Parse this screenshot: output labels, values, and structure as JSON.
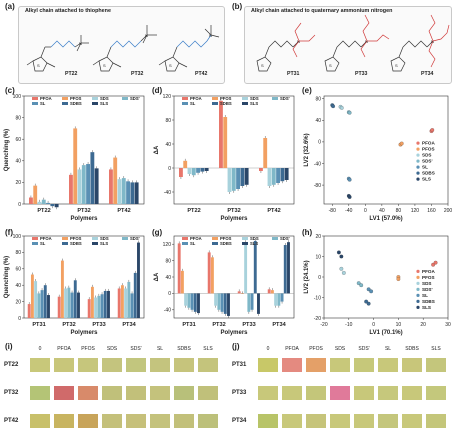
{
  "labels": {
    "a": "(a)",
    "b": "(b)",
    "c": "(c)",
    "d": "(d)",
    "e": "(e)",
    "f": "(f)",
    "g": "(g)",
    "h": "(h)",
    "i": "(i)",
    "j": "(j)"
  },
  "panel_a": {
    "header": "Alkyl chain attached to thiophene",
    "molecules": [
      "PT22",
      "PT32",
      "PT42"
    ],
    "cl": "Cl"
  },
  "panel_b": {
    "header": "Alkyl chain attached to quaternary ammonium nitrogen",
    "molecules": [
      "PT31",
      "PT33",
      "PT34"
    ],
    "cl": "Cl"
  },
  "legend": [
    "PFOA",
    "PFOS",
    "SDS",
    "SDS'",
    "SL",
    "SDBS",
    "SLS"
  ],
  "series_colors": [
    "#e8766b",
    "#f2a062",
    "#a8d2dc",
    "#7fb8c8",
    "#5a90b4",
    "#3d6a92",
    "#2a4668"
  ],
  "chart_data": [
    {
      "id": "c",
      "type": "bar",
      "xlabel": "Polymers",
      "ylabel": "Quenching (%)",
      "ylim": [
        0,
        100
      ],
      "yticks": [
        0,
        20,
        40,
        60,
        80,
        100
      ],
      "categories": [
        "PT22",
        "PT32",
        "PT42"
      ],
      "series": [
        {
          "name": "PFOA",
          "values": [
            6,
            27,
            32
          ]
        },
        {
          "name": "PFOS",
          "values": [
            17,
            70,
            43
          ]
        },
        {
          "name": "SDS",
          "values": [
            2,
            32,
            23
          ]
        },
        {
          "name": "SDS'",
          "values": [
            4,
            36,
            24
          ]
        },
        {
          "name": "SL",
          "values": [
            1,
            37,
            21
          ]
        },
        {
          "name": "SDBS",
          "values": [
            -2,
            48,
            20
          ]
        },
        {
          "name": "SLS",
          "values": [
            -3,
            33,
            20
          ]
        }
      ]
    },
    {
      "id": "d",
      "type": "bar",
      "xlabel": "Polymers",
      "ylabel": "ΔA",
      "ylim": [
        -60,
        120
      ],
      "yticks": [
        -40,
        0,
        40,
        80,
        120
      ],
      "categories": [
        "PT22",
        "PT32",
        "PT42"
      ],
      "series": [
        {
          "name": "PFOA",
          "values": [
            -15,
            112,
            -5
          ]
        },
        {
          "name": "PFOS",
          "values": [
            12,
            85,
            50
          ]
        },
        {
          "name": "SDS",
          "values": [
            -10,
            -40,
            -30
          ]
        },
        {
          "name": "SDS'",
          "values": [
            -12,
            -38,
            -28
          ]
        },
        {
          "name": "SL",
          "values": [
            -8,
            -35,
            -25
          ]
        },
        {
          "name": "SDBS",
          "values": [
            -6,
            -30,
            -22
          ]
        },
        {
          "name": "SLS",
          "values": [
            -5,
            -28,
            -20
          ]
        }
      ]
    },
    {
      "id": "e",
      "type": "scatter",
      "xlabel": "LV1 (57.0%)",
      "ylabel": "LV2 (32.6%)",
      "xlim": [
        -100,
        200
      ],
      "ylim": [
        -115,
        85
      ],
      "xticks": [
        -80,
        -40,
        0,
        40,
        80,
        120,
        160,
        200
      ],
      "yticks": [
        -80,
        -40,
        0,
        40,
        80
      ],
      "series": [
        {
          "name": "PFOA",
          "points": [
            [
              160,
              20
            ],
            [
              162,
              22
            ]
          ]
        },
        {
          "name": "PFOS",
          "points": [
            [
              85,
              -5
            ],
            [
              88,
              -3
            ]
          ]
        },
        {
          "name": "SDS",
          "points": [
            [
              -60,
              65
            ],
            [
              -57,
              63
            ]
          ]
        },
        {
          "name": "SDS'",
          "points": [
            [
              -40,
              55
            ],
            [
              -38,
              54
            ]
          ]
        },
        {
          "name": "SL",
          "points": [
            [
              -40,
              -68
            ],
            [
              -38,
              -70
            ]
          ]
        },
        {
          "name": "SDBS",
          "points": [
            [
              -80,
              68
            ],
            [
              -78,
              66
            ]
          ]
        },
        {
          "name": "SLS",
          "points": [
            [
              -40,
              -100
            ],
            [
              -38,
              -102
            ]
          ]
        }
      ]
    },
    {
      "id": "f",
      "type": "bar",
      "xlabel": "Polymers",
      "ylabel": "Quenching (%)",
      "ylim": [
        0,
        100
      ],
      "yticks": [
        0,
        20,
        40,
        60,
        80,
        100
      ],
      "categories": [
        "PT31",
        "PT32",
        "PT33",
        "PT34"
      ],
      "series": [
        {
          "name": "PFOA",
          "values": [
            17,
            26,
            23,
            36
          ]
        },
        {
          "name": "PFOS",
          "values": [
            53,
            70,
            38,
            40
          ]
        },
        {
          "name": "SDS",
          "values": [
            45,
            36,
            25,
            36
          ]
        },
        {
          "name": "SDS'",
          "values": [
            30,
            37,
            27,
            44
          ]
        },
        {
          "name": "SL",
          "values": [
            34,
            31,
            29,
            30
          ]
        },
        {
          "name": "SDBS",
          "values": [
            40,
            46,
            33,
            55
          ]
        },
        {
          "name": "SLS",
          "values": [
            28,
            31,
            33,
            92
          ]
        }
      ]
    },
    {
      "id": "g",
      "type": "bar",
      "xlabel": "Polymers",
      "ylabel": "ΔA",
      "ylim": [
        -60,
        140
      ],
      "yticks": [
        -40,
        0,
        40,
        80,
        120
      ],
      "categories": [
        "PT31",
        "PT32",
        "PT33",
        "PT34"
      ],
      "series": [
        {
          "name": "PFOA",
          "values": [
            122,
            100,
            5,
            10
          ]
        },
        {
          "name": "PFOS",
          "values": [
            55,
            88,
            0,
            8
          ]
        },
        {
          "name": "SDS",
          "values": [
            -30,
            -30,
            125,
            -30
          ]
        },
        {
          "name": "SDS'",
          "values": [
            -35,
            -40,
            -45,
            -30
          ]
        },
        {
          "name": "SL",
          "values": [
            -40,
            -45,
            -40,
            -20
          ]
        },
        {
          "name": "SDBS",
          "values": [
            -45,
            -50,
            128,
            118
          ]
        },
        {
          "name": "SLS",
          "values": [
            -48,
            -55,
            -50,
            125
          ]
        }
      ]
    },
    {
      "id": "h",
      "type": "scatter",
      "xlabel": "LV1 (70.1%)",
      "ylabel": "LV2 (24.1%)",
      "xlim": [
        -20,
        30
      ],
      "ylim": [
        -20,
        20
      ],
      "xticks": [
        -20,
        -10,
        0,
        10,
        20,
        30
      ],
      "yticks": [
        -20,
        -10,
        0,
        10,
        20
      ],
      "series": [
        {
          "name": "PFOA",
          "points": [
            [
              24,
              6
            ],
            [
              25,
              7
            ]
          ]
        },
        {
          "name": "PFOS",
          "points": [
            [
              10,
              0
            ],
            [
              10,
              -1
            ]
          ]
        },
        {
          "name": "SDS",
          "points": [
            [
              -13,
              4
            ],
            [
              -12,
              2
            ]
          ]
        },
        {
          "name": "SDS'",
          "points": [
            [
              -6,
              -3
            ],
            [
              -5,
              -4
            ]
          ]
        },
        {
          "name": "SL",
          "points": [
            [
              -2,
              -6
            ],
            [
              -1,
              -7
            ]
          ]
        },
        {
          "name": "SDBS",
          "points": [
            [
              -3,
              -12
            ],
            [
              -2,
              -13
            ]
          ]
        },
        {
          "name": "SLS",
          "points": [
            [
              -14,
              12
            ],
            [
              -13,
              10
            ]
          ]
        }
      ]
    }
  ],
  "panel_i": {
    "columns": [
      "0",
      "PFOA",
      "PFOS",
      "SDS",
      "SDS'",
      "SL",
      "SDBS",
      "SLS"
    ],
    "rows": [
      {
        "name": "PT22",
        "colors": [
          "#c8c87a",
          "#c8c67a",
          "#c6c67c",
          "#c4c47e",
          "#c2c67e",
          "#c4c47e",
          "#c6c47c",
          "#c4c47c"
        ]
      },
      {
        "name": "PT32",
        "colors": [
          "#b4c476",
          "#d06a6a",
          "#d88a6a",
          "#c0c07a",
          "#c2c07a",
          "#c4c27c",
          "#b8c07a",
          "#c0c07a"
        ]
      },
      {
        "name": "PT42",
        "colors": [
          "#c8c06a",
          "#c8b460",
          "#c8a45a",
          "#c4c07a",
          "#c6c07a",
          "#c4c27c",
          "#c2c07a",
          "#bcc07a"
        ]
      }
    ]
  },
  "panel_j": {
    "columns": [
      "0",
      "PFOA",
      "PFOS",
      "SDS",
      "SDS'",
      "SL",
      "SDBS",
      "SLS"
    ],
    "rows": [
      {
        "name": "PT31",
        "colors": [
          "#c8c868",
          "#e48a80",
          "#e4a068",
          "#c8c87a",
          "#c6c87a",
          "#c8c87a",
          "#c8c67a",
          "#c4c67c"
        ]
      },
      {
        "name": "PT33",
        "colors": [
          "#c8c87a",
          "#c8c87a",
          "#c4c67a",
          "#e07a9a",
          "#c8c87a",
          "#c6c87c",
          "#c8c87a",
          "#c4c87c"
        ]
      },
      {
        "name": "PT34",
        "colors": [
          "#b8c468",
          "#c8c87a",
          "#c6c47a",
          "#c8c87a",
          "#c8c87a",
          "#c4c67c",
          "#c8c87a",
          "#c4c67a"
        ]
      }
    ]
  }
}
